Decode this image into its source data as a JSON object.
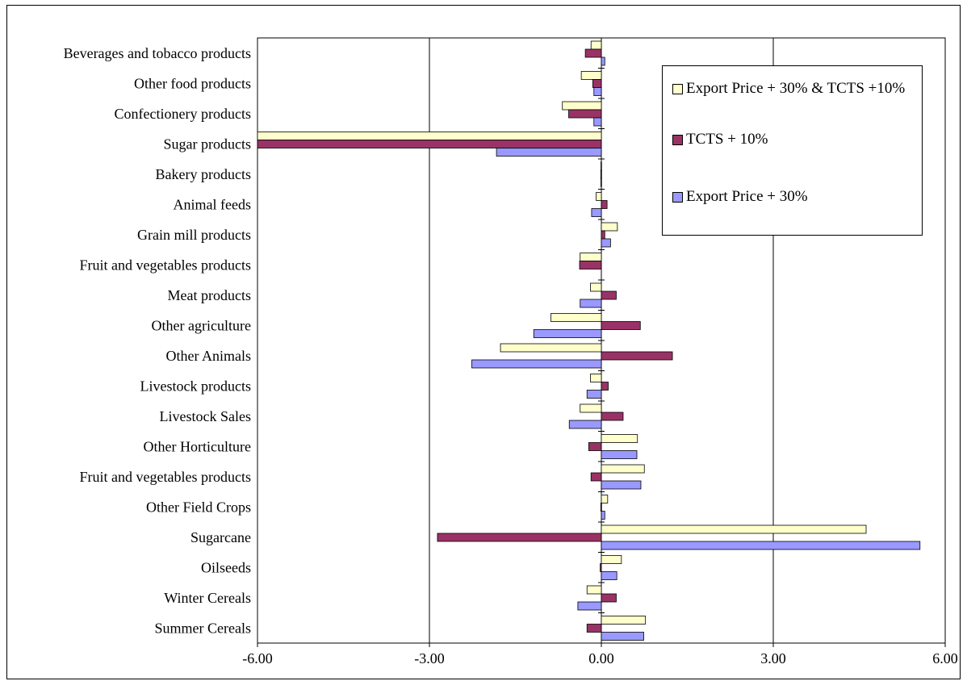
{
  "chart_data": {
    "type": "bar",
    "orientation": "horizontal",
    "categories": [
      "Beverages and tobacco products",
      "Other food products",
      "Confectionery products",
      "Sugar products",
      "Bakery products",
      "Animal feeds",
      "Grain mill products",
      "Fruit and vegetables products",
      "Meat products",
      "Other agriculture",
      "Other Animals",
      "Livestock products",
      "Livestock Sales",
      "Other Horticulture",
      "Fruit and vegetables products",
      "Other Field Crops",
      "Sugarcane",
      "Oilseeds",
      "Winter Cereals",
      "Summer Cereals"
    ],
    "series": [
      {
        "name": "Export Price + 30% & TCTS +10%",
        "color": "#FFFFCC",
        "values": [
          -0.18,
          -0.35,
          -0.68,
          -6.5,
          -0.01,
          -0.09,
          0.28,
          -0.37,
          -0.19,
          -0.88,
          -1.76,
          -0.19,
          -0.37,
          0.63,
          0.75,
          0.11,
          4.62,
          0.35,
          -0.25,
          0.77
        ]
      },
      {
        "name": "TCTS + 10%",
        "color": "#993366",
        "values": [
          -0.28,
          -0.15,
          -0.57,
          -6.5,
          -0.01,
          0.1,
          0.06,
          -0.38,
          0.26,
          0.68,
          1.24,
          0.12,
          0.38,
          -0.22,
          -0.18,
          -0.01,
          -2.86,
          -0.02,
          0.26,
          -0.25
        ]
      },
      {
        "name": "Export Price + 30%",
        "color": "#9999FF",
        "values": [
          0.06,
          -0.13,
          -0.13,
          -1.83,
          -0.01,
          -0.17,
          0.16,
          0.0,
          -0.37,
          -1.18,
          -2.26,
          -0.25,
          -0.56,
          0.62,
          0.69,
          0.06,
          5.56,
          0.27,
          -0.41,
          0.74
        ]
      }
    ],
    "xlim": [
      -6.0,
      6.0
    ],
    "xticks": [
      "-6.00",
      "-3.00",
      "0.00",
      "3.00",
      "6.00"
    ],
    "grid": "vertical",
    "legend_position": "top-right",
    "title": "",
    "xlabel": "",
    "ylabel": ""
  }
}
